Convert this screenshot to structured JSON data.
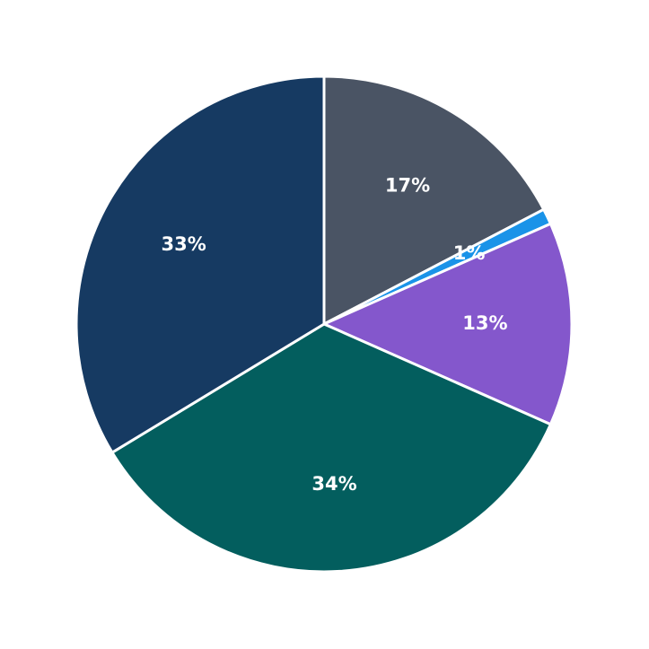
{
  "chart_data": {
    "type": "pie",
    "values": [
      17,
      1,
      13,
      34,
      33
    ],
    "value_labels": [
      "17%",
      "1%",
      "13%",
      "34%",
      "33%"
    ],
    "colors": [
      "#4a5464",
      "#1a93e8",
      "#8457cc",
      "#035e5e",
      "#163a62"
    ]
  }
}
